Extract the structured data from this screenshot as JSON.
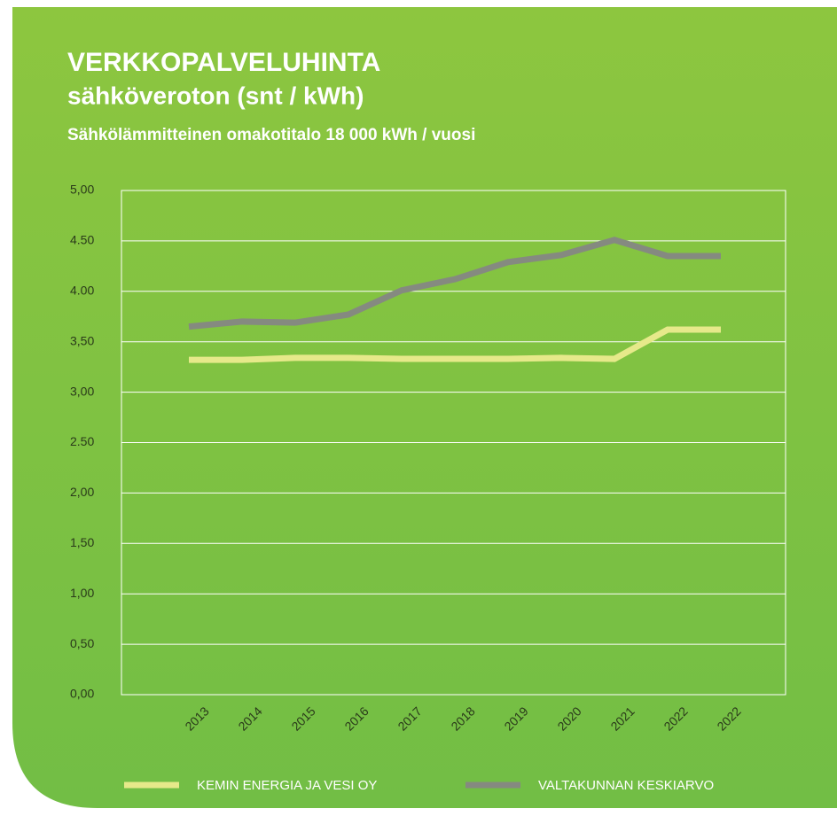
{
  "chart_data": {
    "type": "line",
    "title": "VERKKOPALVELUHINTA",
    "subtitle": "sähköveroton (snt / kWh)",
    "description": "Sähkölämmitteinen omakotitalo 18 000 kWh / vuosi",
    "categories": [
      "2013",
      "2014",
      "2015",
      "2016",
      "2017",
      "2018",
      "2019",
      "2020",
      "2021",
      "2022",
      "2022"
    ],
    "series": [
      {
        "name": "KEMIN ENERGIA JA VESI OY",
        "color": "#e6e98a",
        "values": [
          3.32,
          3.32,
          3.34,
          3.34,
          3.33,
          3.33,
          3.33,
          3.34,
          3.33,
          3.62,
          3.62
        ]
      },
      {
        "name": "VALTAKUNNAN KESKIARVO",
        "color": "#858a80",
        "values": [
          3.65,
          3.7,
          3.69,
          3.77,
          4.01,
          4.12,
          4.29,
          4.36,
          4.51,
          4.35,
          4.35
        ]
      }
    ],
    "ylim": [
      0,
      5
    ],
    "yticks": [
      {
        "value": 0,
        "label": "0,00"
      },
      {
        "value": 0.5,
        "label": "0,50"
      },
      {
        "value": 1,
        "label": "1,00"
      },
      {
        "value": 1.5,
        "label": "1,50"
      },
      {
        "value": 2,
        "label": "2,00"
      },
      {
        "value": 2.5,
        "label": "2.50"
      },
      {
        "value": 3,
        "label": "3,00"
      },
      {
        "value": 3.5,
        "label": "3,50"
      },
      {
        "value": 4,
        "label": "4.00"
      },
      {
        "value": 4.5,
        "label": "4.50"
      },
      {
        "value": 5,
        "label": "5,00"
      }
    ],
    "grid": true,
    "legend": "bottom"
  }
}
